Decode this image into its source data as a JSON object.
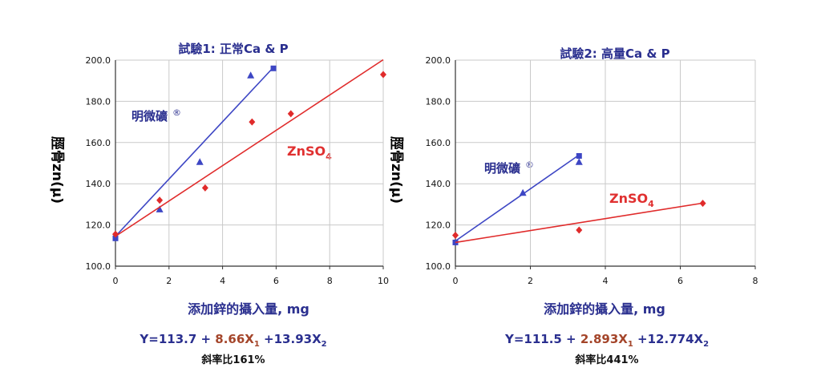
{
  "colors": {
    "blue": "#3d46c4",
    "red": "#e02b2b",
    "navy": "#2a2f8f",
    "coef_red": "#a4452a",
    "axis": "#333333",
    "grid": "#c9c9c9"
  },
  "shared": {
    "ylabel": "骨zn(µ)",
    "ylabel_prefix": "脛",
    "xlabel": "添加鋅的攝入量, mg",
    "label_zinc_product": "明微礦",
    "label_zinc_product_mark": "®",
    "label_znso4": "ZnSO",
    "label_znso4_sub": "4"
  },
  "chart_data": [
    {
      "type": "scatter",
      "title": "試驗1: 正常Ca & P",
      "xlabel": "添加鋅的攝入量, mg",
      "ylabel": "脛骨zn(µ)",
      "xlim": [
        0,
        10
      ],
      "ylim": [
        100,
        200
      ],
      "xticks": [
        0,
        2,
        4,
        6,
        8,
        10
      ],
      "yticks": [
        100.0,
        120.0,
        140.0,
        160.0,
        180.0,
        200.0
      ],
      "ytick_labels": [
        "100.0",
        "120.0",
        "140.0",
        "160.0",
        "180.0",
        "200.0"
      ],
      "grid": true,
      "series": [
        {
          "name": "明微礦",
          "color": "#3d46c4",
          "points": [
            {
              "x": 0,
              "y": 113.5,
              "marker": "square"
            },
            {
              "x": 1.65,
              "y": 127.5,
              "marker": "triangle"
            },
            {
              "x": 3.15,
              "y": 150.5,
              "marker": "triangle"
            },
            {
              "x": 5.05,
              "y": 192.5,
              "marker": "triangle"
            },
            {
              "x": 5.9,
              "y": 196,
              "marker": "square"
            }
          ],
          "fit": {
            "x0": 0,
            "y0": 114.5,
            "x1": 5.9,
            "y1": 196.5
          }
        },
        {
          "name": "ZnSO4",
          "color": "#e02b2b",
          "points": [
            {
              "x": 0,
              "y": 115.5,
              "marker": "diamond"
            },
            {
              "x": 1.65,
              "y": 132,
              "marker": "diamond"
            },
            {
              "x": 3.35,
              "y": 138,
              "marker": "diamond"
            },
            {
              "x": 5.1,
              "y": 170,
              "marker": "diamond"
            },
            {
              "x": 6.55,
              "y": 174,
              "marker": "diamond"
            },
            {
              "x": 10,
              "y": 193,
              "marker": "diamond"
            }
          ],
          "fit": {
            "x0": 0,
            "y0": 114.5,
            "x1": 10,
            "y1": 200.2
          }
        }
      ],
      "equation": {
        "lead": "Y=113.7 + ",
        "coef1": "8.66X",
        "sub1": "1",
        "rest": " +13.93X",
        "sub2": "2"
      },
      "ratio_text": "斜率比161%"
    },
    {
      "type": "scatter",
      "title": "試驗2: 高量Ca & P",
      "xlabel": "添加鋅的攝入量, mg",
      "ylabel": "脛骨zn(µ)",
      "xlim": [
        0,
        8
      ],
      "ylim": [
        100,
        200
      ],
      "xticks": [
        0,
        2,
        4,
        6,
        8
      ],
      "yticks": [
        100.0,
        120.0,
        140.0,
        160.0,
        180.0,
        200.0
      ],
      "ytick_labels": [
        "100.0",
        "120.0",
        "140.0",
        "160.0",
        "180.0",
        "200.0"
      ],
      "grid": true,
      "series": [
        {
          "name": "明微礦",
          "color": "#3d46c4",
          "points": [
            {
              "x": 0,
              "y": 111.5,
              "marker": "square"
            },
            {
              "x": 1.8,
              "y": 135.5,
              "marker": "triangle"
            },
            {
              "x": 3.3,
              "y": 150.5,
              "marker": "triangle"
            },
            {
              "x": 3.3,
              "y": 153.5,
              "marker": "square"
            }
          ],
          "fit": {
            "x0": 0,
            "y0": 112.2,
            "x1": 3.3,
            "y1": 154
          }
        },
        {
          "name": "ZnSO4",
          "color": "#e02b2b",
          "points": [
            {
              "x": 0,
              "y": 115,
              "marker": "diamond"
            },
            {
              "x": 3.3,
              "y": 117.5,
              "marker": "diamond"
            },
            {
              "x": 6.6,
              "y": 130.5,
              "marker": "diamond"
            }
          ],
          "fit": {
            "x0": 0,
            "y0": 111.5,
            "x1": 6.6,
            "y1": 130.6
          }
        }
      ],
      "equation": {
        "lead": "Y=111.5 + ",
        "coef1": "2.893X",
        "sub1": "1",
        "rest": " +12.774X",
        "sub2": "2"
      },
      "ratio_text": "斜率比441%"
    }
  ]
}
